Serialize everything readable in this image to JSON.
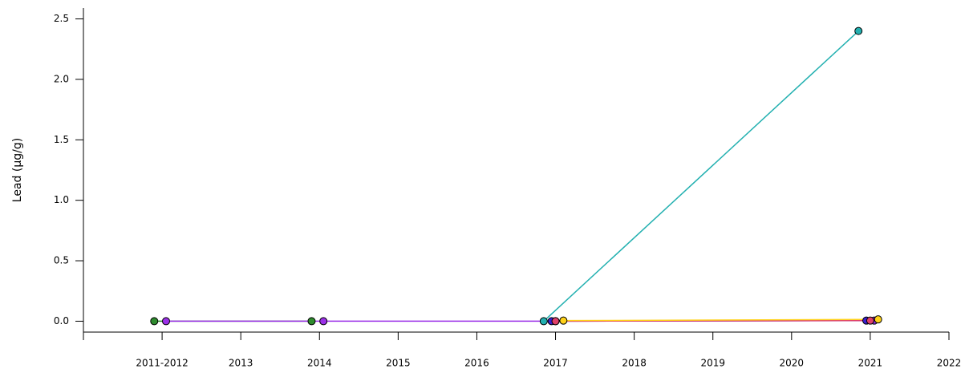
{
  "chart_data": {
    "type": "line",
    "y_label": "Lead (µg/g)",
    "xlim": [
      2011,
      2022
    ],
    "xticks": [
      {
        "value": 2012,
        "label": "2011-2012"
      },
      2013,
      2014,
      2015,
      2016,
      2017,
      2018,
      2019,
      2020,
      2021,
      2022
    ],
    "ylim": [
      -0.09,
      2.59
    ],
    "yticks": [
      {
        "value": 0,
        "label": "0.0"
      },
      0.5,
      {
        "value": 1,
        "label": "1.0"
      },
      1.5,
      {
        "value": 2,
        "label": "2.0"
      },
      2.5
    ],
    "series": [
      {
        "name": "green",
        "color": "#2e8b2e",
        "x": [
          2011.9,
          2013.9
        ],
        "values": [
          0,
          0
        ]
      },
      {
        "name": "purple",
        "color": "#9b30e8",
        "x": [
          2012.05,
          2014.05,
          2017.0,
          2021.05
        ],
        "values": [
          0,
          0,
          0,
          0.005
        ]
      },
      {
        "name": "teal",
        "color": "#22b0b0",
        "x": [
          2016.85,
          2020.85
        ],
        "values": [
          0,
          2.4
        ]
      },
      {
        "name": "blue",
        "color": "#3a1fd0",
        "x": [
          2016.95,
          2020.95
        ],
        "values": [
          0,
          0.005
        ]
      },
      {
        "name": "red",
        "color": "#e0406a",
        "x": [
          2017.0,
          2021.0
        ],
        "values": [
          0,
          0.005
        ]
      },
      {
        "name": "yellow",
        "color": "#ffd21a",
        "x": [
          2017.1,
          2021.1
        ],
        "values": [
          0.005,
          0.015
        ]
      }
    ]
  }
}
